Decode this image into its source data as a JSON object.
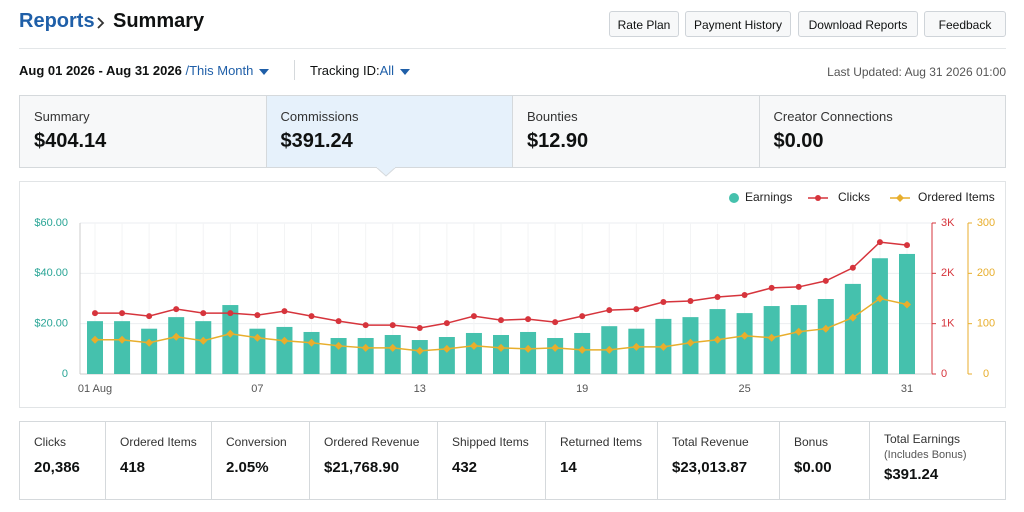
{
  "header": {
    "breadcrumb": "Reports",
    "title": "Summary"
  },
  "buttons": [
    "Rate Plan",
    "Payment History",
    "Download Reports",
    "Feedback"
  ],
  "filters": {
    "date_range": "Aug 01 2026 - Aug 31 2026",
    "period": "/This Month",
    "tracking_label": "Tracking ID:",
    "tracking_value": "All",
    "last_updated": "Last Updated: Aug 31 2026 01:00"
  },
  "tabs": [
    {
      "label": "Summary",
      "value": "$404.14"
    },
    {
      "label": "Commissions",
      "value": "$391.24"
    },
    {
      "label": "Bounties",
      "value": "$12.90"
    },
    {
      "label": "Creator Connections",
      "value": "$0.00"
    }
  ],
  "chart_data": {
    "type": "bar_line",
    "categories": [
      "01 Aug",
      null,
      null,
      null,
      null,
      null,
      "07",
      null,
      null,
      null,
      null,
      null,
      "13",
      null,
      null,
      null,
      null,
      null,
      "19",
      null,
      null,
      null,
      null,
      null,
      "25",
      null,
      null,
      null,
      null,
      null,
      "31"
    ],
    "series": [
      {
        "name": "Earnings",
        "color": "#45c1ad",
        "type": "bar",
        "axis": "y",
        "values": [
          21,
          21,
          18,
          22.6,
          21,
          27.4,
          18,
          18.7,
          16.7,
          14.3,
          14.3,
          15.5,
          13.5,
          14.7,
          16.3,
          15.5,
          16.7,
          14.3,
          16.3,
          19,
          18,
          21.9,
          22.6,
          25.8,
          24.2,
          27,
          27.4,
          29.8,
          35.8,
          46,
          47.7
        ]
      },
      {
        "name": "Clicks",
        "color": "#d6343c",
        "type": "line",
        "axis": "y2",
        "values": [
          1210,
          1210,
          1150,
          1290,
          1210,
          1210,
          1170,
          1250,
          1150,
          1050,
          970,
          970,
          915,
          1010,
          1150,
          1070,
          1090,
          1030,
          1150,
          1270,
          1290,
          1430,
          1450,
          1530,
          1570,
          1710,
          1730,
          1850,
          2110,
          2620,
          2560
        ]
      },
      {
        "name": "Ordered Items",
        "color": "#e8ae2c",
        "type": "line",
        "axis": "y3",
        "values": [
          68,
          68,
          62,
          74,
          66,
          80,
          72,
          66,
          62,
          56,
          52,
          52,
          46,
          50,
          56,
          52,
          50,
          52,
          48,
          48,
          54,
          54,
          62,
          68,
          76,
          72,
          84,
          90,
          112,
          150,
          138
        ]
      }
    ],
    "ylim": [
      0,
      60
    ],
    "yticks": [
      {
        "value": 0,
        "label": "0"
      },
      {
        "value": 20,
        "label": "$20.00"
      },
      {
        "value": 40,
        "label": "$40.00"
      },
      {
        "value": 60,
        "label": "$60.00"
      }
    ],
    "y2lim": [
      0,
      3000
    ],
    "y2ticks": [
      {
        "value": 0,
        "label": "0"
      },
      {
        "value": 1000,
        "label": "1K"
      },
      {
        "value": 2000,
        "label": "2K"
      },
      {
        "value": 3000,
        "label": "3K"
      }
    ],
    "y3lim": [
      0,
      300
    ],
    "y3ticks": [
      0,
      100,
      200,
      300
    ],
    "grid": true,
    "legend": "top-right"
  },
  "stats": [
    {
      "label": "Clicks",
      "value": "20,386"
    },
    {
      "label": "Ordered Items",
      "value": "418"
    },
    {
      "label": "Conversion",
      "value": "2.05%"
    },
    {
      "label": "Ordered Revenue",
      "value": "$21,768.90"
    },
    {
      "label": "Shipped Items",
      "value": "432"
    },
    {
      "label": "Returned Items",
      "value": "14"
    },
    {
      "label": "Total Revenue",
      "value": "$23,013.87"
    },
    {
      "label": "Bonus",
      "value": "$0.00"
    },
    {
      "label": "Total Earnings",
      "sublabel": "(Includes Bonus)",
      "value": "$391.24"
    }
  ]
}
